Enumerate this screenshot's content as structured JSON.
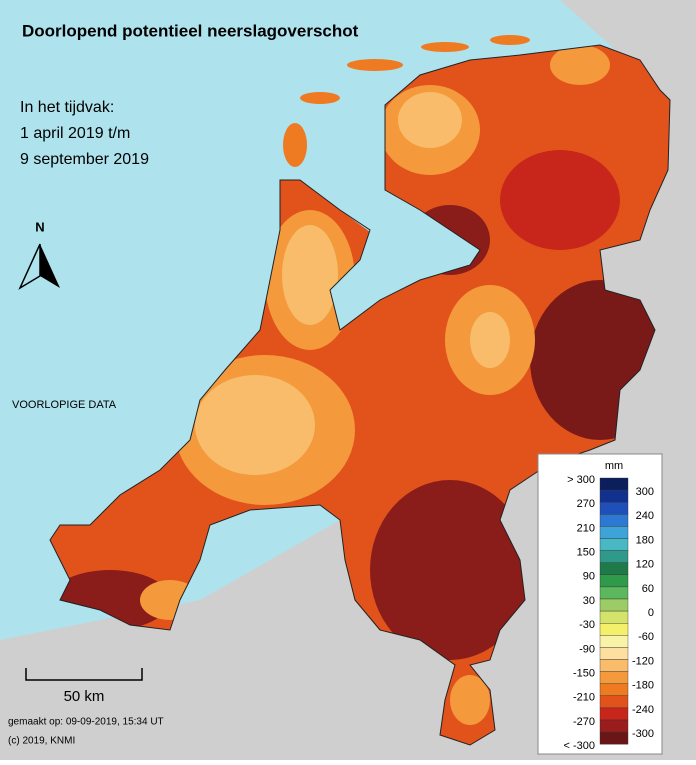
{
  "title": "Doorlopend potentieel neerslagoverschot",
  "period": {
    "heading": "In het tijdvak:",
    "from": "1 april 2019 t/m",
    "to": "9 september 2019"
  },
  "north": "N",
  "note": "VOORLOPIGE DATA",
  "legend": {
    "unit": "mm",
    "left_labels": [
      "> 300",
      "270",
      "210",
      "150",
      "90",
      "30",
      "-30",
      "-90",
      "-150",
      "-210",
      "-270",
      "< -300"
    ],
    "right_labels": [
      "300",
      "240",
      "180",
      "120",
      "60",
      "0",
      "-60",
      "-120",
      "-180",
      "-240",
      "-300"
    ],
    "colors": [
      "#0a1f5c",
      "#12318f",
      "#1f4fb8",
      "#2d78d2",
      "#3ea3d9",
      "#47b8c4",
      "#2f9a8a",
      "#1f7a4a",
      "#2f9a4a",
      "#5cb85c",
      "#9ccc65",
      "#d4e36a",
      "#f5f06a",
      "#f9f3a8",
      "#fde0a0",
      "#f9bc6a",
      "#f49a3c",
      "#ee7a22",
      "#e2531c",
      "#c8261a",
      "#9a1c1c",
      "#6a1616"
    ]
  },
  "scale": "50 km",
  "footer": {
    "made": "gemaakt op: 09-09-2019, 15:34 UT",
    "copyright": "(c) 2019, KNMI"
  }
}
